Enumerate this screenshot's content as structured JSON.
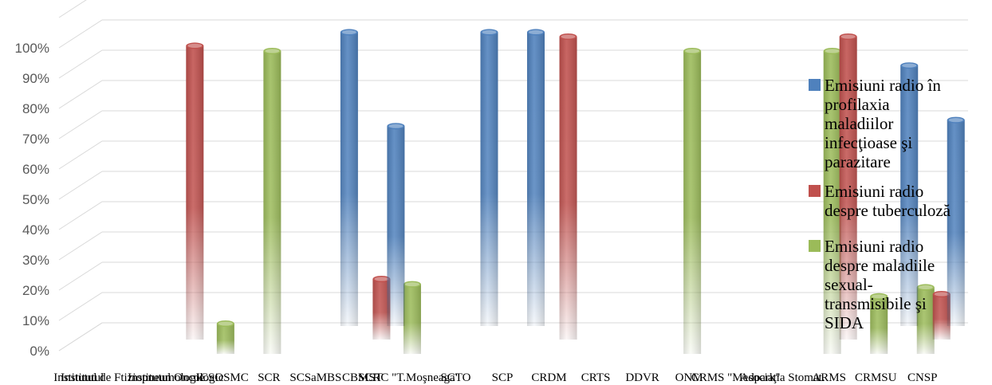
{
  "chart_data": {
    "type": "bar",
    "style": "3d-cylinder",
    "categories": [
      "Institutul",
      "Institutul de Ftiziopneumologie",
      "Institutul Oncologic",
      "ICSOSMC",
      "SCR",
      "SCSaMBS",
      "CBMST",
      "SCRC \"T.Moşneaga\"",
      "SCTO",
      "SCP",
      "CRDM",
      "CRTS",
      "DDVR",
      "ONM",
      "CRMS \"Medpark\"",
      "Asociaţia Stomat.",
      "ARMS",
      "CRMSU",
      "CNSP"
    ],
    "ylim": [
      0,
      1.0
    ],
    "yticks": [
      "0%",
      "10%",
      "20%",
      "30%",
      "40%",
      "50%",
      "60%",
      "70%",
      "80%",
      "90%",
      "100%"
    ],
    "series": [
      {
        "name": "Emisiuni radio în profilaxia maladiilor infecţioase şi parazitare",
        "color": "#4f81bd",
        "values": [
          0,
          0,
          0,
          0,
          0,
          0.97,
          0.66,
          0,
          0.97,
          0.97,
          0,
          0,
          0,
          0,
          0,
          0,
          0,
          0.86,
          0.68
        ]
      },
      {
        "name": "Emisiuni radio despre tuberculoză",
        "color": "#c0504d",
        "values": [
          0,
          0,
          0.97,
          0,
          0,
          0,
          0.2,
          0,
          0,
          0,
          1.0,
          0,
          0,
          0,
          0,
          0,
          1.0,
          0,
          0.15
        ]
      },
      {
        "name": "Emisiuni radio despre maladiile sexual-transmisibile şi SIDA",
        "color": "#9bbb59",
        "values": [
          0,
          0,
          0,
          0.1,
          1.0,
          0,
          0,
          0.23,
          0,
          0,
          0,
          0,
          0,
          1.0,
          0,
          0,
          1.0,
          0.19,
          0.22
        ]
      }
    ],
    "legend_position": "right",
    "grid": true
  },
  "legend": {
    "series1_lines": [
      "Emisiuni radio în",
      "profilaxia",
      "maladiilor",
      "infecţioase şi",
      "parazitare"
    ],
    "series2_lines": [
      "Emisiuni radio",
      "despre tuberculoză"
    ],
    "series3_lines": [
      "Emisiuni radio",
      "despre maladiile",
      "sexual-",
      "transmisibile şi",
      "SIDA"
    ]
  }
}
